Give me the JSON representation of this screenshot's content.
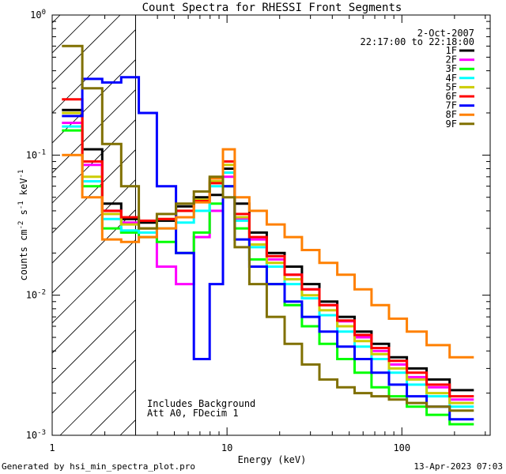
{
  "chart_data": {
    "type": "line",
    "title": "Count Spectra for RHESSI Front Segments",
    "xlabel": "Energy (keV)",
    "ylabel_parts": [
      "counts cm",
      "-2",
      " s",
      "-1",
      " keV",
      "-1"
    ],
    "x_scale": "log",
    "y_scale": "log",
    "xlim": [
      1.0,
      320.0
    ],
    "ylim": [
      0.001,
      1.0
    ],
    "x_tick_labels": [
      {
        "value": 1,
        "label": "1"
      },
      {
        "value": 10,
        "label": "10"
      },
      {
        "value": 100,
        "label": "100"
      }
    ],
    "y_tick_labels": [
      {
        "value": 1,
        "base": "10",
        "exp": "0"
      },
      {
        "value": 0.1,
        "base": "10",
        "exp": "-1"
      },
      {
        "value": 0.01,
        "base": "10",
        "exp": "-2"
      },
      {
        "value": 0.001,
        "base": "10",
        "exp": "-3"
      }
    ],
    "hatched_region": {
      "xmin": 1.0,
      "xmax": 3.0
    },
    "date": "2-Oct-2007",
    "time_range": "22:17:00 to 22:18:00",
    "annotations": [
      "Includes Background",
      "Att A0, FDecim 1"
    ],
    "series": [
      {
        "name": "1F",
        "color": "#000000",
        "values": [
          0.21,
          0.11,
          0.045,
          0.035,
          0.033,
          0.034,
          0.043,
          0.05,
          0.052,
          0.08,
          0.045,
          0.028,
          0.02,
          0.016,
          0.012,
          0.009,
          0.007,
          0.0055,
          0.0045,
          0.0036,
          0.003,
          0.0025,
          0.0021
        ]
      },
      {
        "name": "2F",
        "color": "#ff00ff",
        "values": [
          0.17,
          0.085,
          0.04,
          0.033,
          0.03,
          0.016,
          0.012,
          0.026,
          0.04,
          0.07,
          0.035,
          0.025,
          0.018,
          0.014,
          0.011,
          0.0085,
          0.0065,
          0.005,
          0.004,
          0.0032,
          0.0026,
          0.0022,
          0.0018
        ]
      },
      {
        "name": "3F",
        "color": "#00ff00",
        "values": [
          0.15,
          0.06,
          0.03,
          0.028,
          0.026,
          0.024,
          0.02,
          0.028,
          0.045,
          0.06,
          0.03,
          0.018,
          0.012,
          0.0085,
          0.006,
          0.0045,
          0.0035,
          0.0028,
          0.0022,
          0.0019,
          0.0016,
          0.0014,
          0.0012
        ]
      },
      {
        "name": "4F",
        "color": "#00ffff",
        "values": [
          0.16,
          0.065,
          0.035,
          0.029,
          0.028,
          0.03,
          0.033,
          0.04,
          0.06,
          0.075,
          0.034,
          0.022,
          0.016,
          0.012,
          0.0095,
          0.0072,
          0.0055,
          0.0043,
          0.0035,
          0.0028,
          0.0023,
          0.0019,
          0.0016
        ]
      },
      {
        "name": "5F",
        "color": "#cccc00",
        "values": [
          0.2,
          0.07,
          0.038,
          0.032,
          0.03,
          0.035,
          0.04,
          0.048,
          0.065,
          0.085,
          0.036,
          0.023,
          0.017,
          0.013,
          0.01,
          0.0078,
          0.006,
          0.0047,
          0.0038,
          0.003,
          0.0025,
          0.002,
          0.0017
        ]
      },
      {
        "name": "6F",
        "color": "#ff0000",
        "values": [
          0.25,
          0.09,
          0.04,
          0.036,
          0.034,
          0.035,
          0.04,
          0.047,
          0.063,
          0.09,
          0.038,
          0.026,
          0.019,
          0.014,
          0.011,
          0.0085,
          0.0066,
          0.0052,
          0.0042,
          0.0034,
          0.0028,
          0.0023,
          0.0019
        ]
      },
      {
        "name": "7F",
        "color": "#0000ff",
        "values": [
          0.19,
          0.35,
          0.33,
          0.36,
          0.2,
          0.06,
          0.02,
          0.0035,
          0.012,
          0.06,
          0.025,
          0.016,
          0.012,
          0.009,
          0.007,
          0.0055,
          0.0043,
          0.0035,
          0.0028,
          0.0023,
          0.0019,
          0.0016,
          0.0013
        ]
      },
      {
        "name": "8F",
        "color": "#ff8000",
        "values": [
          0.1,
          0.05,
          0.025,
          0.024,
          0.026,
          0.03,
          0.036,
          0.046,
          0.068,
          0.11,
          0.05,
          0.04,
          0.032,
          0.026,
          0.021,
          0.017,
          0.014,
          0.011,
          0.0085,
          0.0068,
          0.0055,
          0.0044,
          0.0036
        ]
      },
      {
        "name": "9F",
        "color": "#807000",
        "values": [
          0.6,
          0.3,
          0.12,
          0.06,
          0.03,
          0.038,
          0.045,
          0.055,
          0.07,
          0.05,
          0.022,
          0.012,
          0.007,
          0.0045,
          0.0032,
          0.0025,
          0.0022,
          0.002,
          0.0019,
          0.0018,
          0.0017,
          0.0016,
          0.0015
        ]
      }
    ],
    "x": [
      1.3,
      1.7,
      2.2,
      2.8,
      3.5,
      4.5,
      5.8,
      7.2,
      8.8,
      10.2,
      12.0,
      15.0,
      19.0,
      24.0,
      30.0,
      38.0,
      48.0,
      60.0,
      75.0,
      95.0,
      120.0,
      160.0,
      220.0
    ]
  },
  "footer": {
    "generated_by": "Generated by hsi_min_spectra_plot.pro",
    "timestamp": "13-Apr-2023 07:03"
  }
}
